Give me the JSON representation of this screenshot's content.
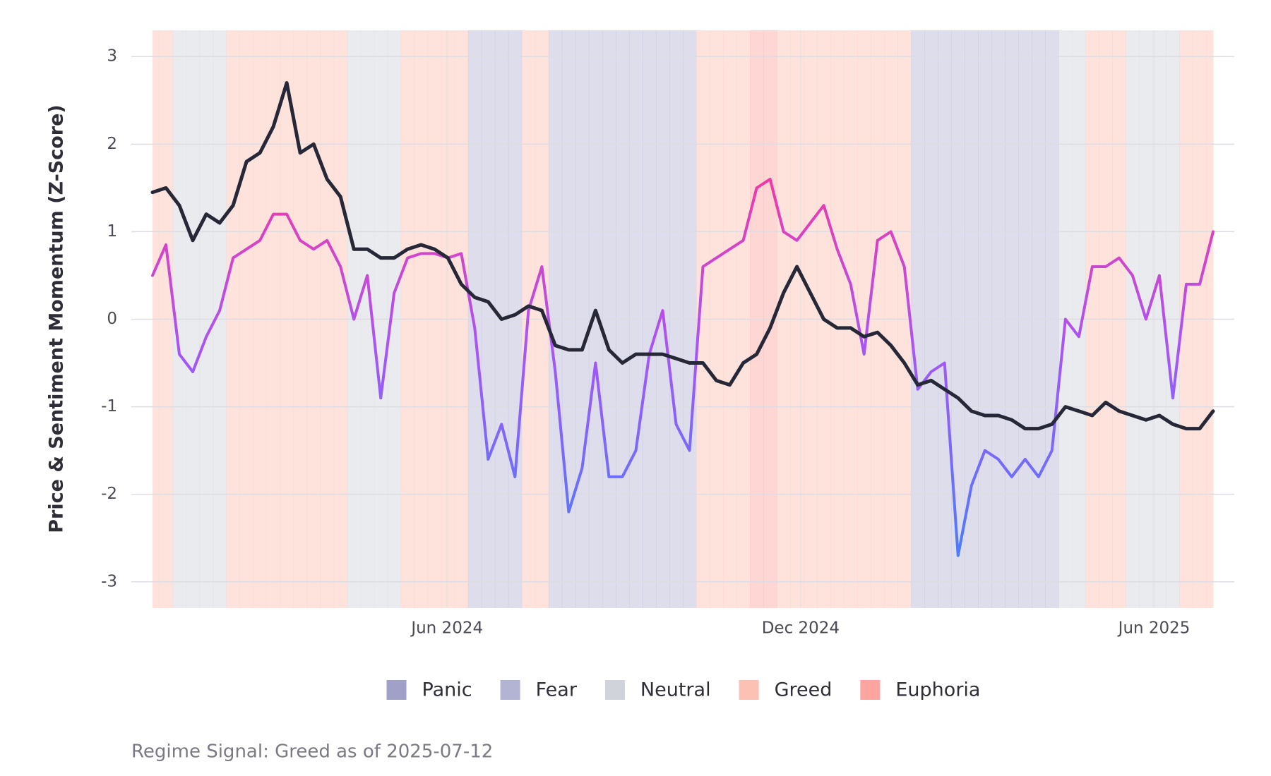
{
  "chart_data": {
    "type": "line",
    "y_label": "Price & Sentiment Momentum (Z-Score)",
    "caption": "Regime Signal: Greed as of 2025-07-12",
    "xlim": [
      "2024-01",
      "2025-07"
    ],
    "xticks": [
      {
        "value": "2024-06",
        "label": "Jun 2024"
      },
      {
        "value": "2024-12",
        "label": "Dec 2024"
      },
      {
        "value": "2025-06",
        "label": "Jun 2025"
      }
    ],
    "ylim": [
      -3.3,
      3.3
    ],
    "yticks": [
      -3,
      -2,
      -1,
      0,
      1,
      2,
      3
    ],
    "grid": true,
    "legend": "bottom",
    "regimes": [
      {
        "name": "Panic",
        "color": "#a0a0c8"
      },
      {
        "name": "Fear",
        "color": "#b3b3d4"
      },
      {
        "name": "Neutral",
        "color": "#d0d3d9"
      },
      {
        "name": "Greed",
        "color": "#fdc1b4"
      },
      {
        "name": "Euphoria",
        "color": "#fca4a0"
      }
    ],
    "regime_series": [
      "Greed",
      "Greed",
      "Neutral",
      "Neutral",
      "Neutral",
      "Neutral",
      "Greed",
      "Greed",
      "Greed",
      "Greed",
      "Greed",
      "Greed",
      "Greed",
      "Greed",
      "Greed",
      "Neutral",
      "Neutral",
      "Neutral",
      "Neutral",
      "Greed",
      "Greed",
      "Greed",
      "Greed",
      "Greed",
      "Fear",
      "Fear",
      "Fear",
      "Fear",
      "Greed",
      "Greed",
      "Fear",
      "Fear",
      "Fear",
      "Fear",
      "Fear",
      "Fear",
      "Fear",
      "Fear",
      "Fear",
      "Fear",
      "Fear",
      "Greed",
      "Greed",
      "Greed",
      "Greed",
      "Euphoria",
      "Euphoria",
      "Greed",
      "Greed",
      "Greed",
      "Greed",
      "Greed",
      "Greed",
      "Greed",
      "Greed",
      "Greed",
      "Greed",
      "Fear",
      "Fear",
      "Fear",
      "Fear",
      "Fear",
      "Fear",
      "Fear",
      "Fear",
      "Fear",
      "Fear",
      "Fear",
      "Neutral",
      "Neutral",
      "Greed",
      "Greed",
      "Greed",
      "Neutral",
      "Neutral",
      "Neutral",
      "Neutral",
      "Greed",
      "Greed",
      "Greed"
    ],
    "series": [
      {
        "color": "#262838",
        "values": [
          1.45,
          1.5,
          1.3,
          0.9,
          1.2,
          1.1,
          1.3,
          1.8,
          1.9,
          2.2,
          2.7,
          1.9,
          2.0,
          1.6,
          1.4,
          0.8,
          0.8,
          0.7,
          0.7,
          0.8,
          0.85,
          0.8,
          0.7,
          0.4,
          0.25,
          0.2,
          0.0,
          0.05,
          0.15,
          0.1,
          -0.3,
          -0.35,
          -0.35,
          0.1,
          -0.35,
          -0.5,
          -0.4,
          -0.4,
          -0.4,
          -0.45,
          -0.5,
          -0.5,
          -0.7,
          -0.75,
          -0.5,
          -0.4,
          -0.1,
          0.3,
          0.6,
          0.3,
          0.0,
          -0.1,
          -0.1,
          -0.2,
          -0.15,
          -0.3,
          -0.5,
          -0.75,
          -0.7,
          -0.8,
          -0.9,
          -1.05,
          -1.1,
          -1.1,
          -1.15,
          -1.25,
          -1.25,
          -1.2,
          -1.0,
          -1.05,
          -1.1,
          -0.95,
          -1.05,
          -1.1,
          -1.15,
          -1.1,
          -1.2,
          -1.25,
          -1.25,
          -1.05
        ]
      },
      {
        "colors": [
          "#ff3399",
          "#a855f7",
          "#4d7cff"
        ],
        "values": [
          0.5,
          0.85,
          -0.4,
          -0.6,
          -0.2,
          0.1,
          0.7,
          0.8,
          0.9,
          1.2,
          1.2,
          0.9,
          0.8,
          0.9,
          0.6,
          0.0,
          0.5,
          -0.9,
          0.3,
          0.7,
          0.75,
          0.75,
          0.7,
          0.75,
          -0.1,
          -1.6,
          -1.2,
          -1.8,
          0.1,
          0.6,
          -0.6,
          -2.2,
          -1.7,
          -0.5,
          -1.8,
          -1.8,
          -1.5,
          -0.4,
          0.1,
          -1.2,
          -1.5,
          0.6,
          0.7,
          0.8,
          0.9,
          1.5,
          1.6,
          1.0,
          0.9,
          1.1,
          1.3,
          0.8,
          0.4,
          -0.4,
          0.9,
          1.0,
          0.6,
          -0.8,
          -0.6,
          -0.5,
          -2.7,
          -1.9,
          -1.5,
          -1.6,
          -1.8,
          -1.6,
          -1.8,
          -1.5,
          0.0,
          -0.2,
          0.6,
          0.6,
          0.7,
          0.5,
          0.0,
          0.5,
          -0.9,
          0.4,
          0.4,
          1.0
        ]
      }
    ]
  }
}
